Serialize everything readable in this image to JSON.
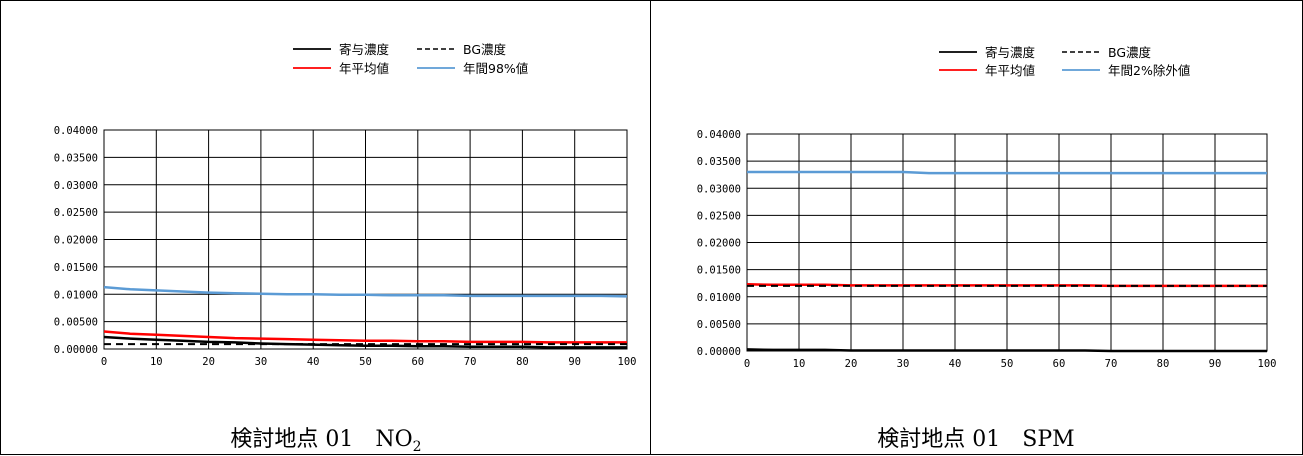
{
  "chart_data": [
    {
      "type": "line",
      "title": "",
      "caption": "検討地点 01　NO",
      "caption_subscript": "2",
      "xlabel": "",
      "ylabel": "",
      "xlim": [
        0,
        100
      ],
      "ylim": [
        0,
        0.04
      ],
      "x_ticks": [
        0,
        10,
        20,
        30,
        40,
        50,
        60,
        70,
        80,
        90,
        100
      ],
      "x_tick_labels": [
        "0",
        "10",
        "20",
        "30",
        "40",
        "50",
        "60",
        "70",
        "80",
        "90",
        "100"
      ],
      "y_ticks": [
        0,
        0.005,
        0.01,
        0.015,
        0.02,
        0.025,
        0.03,
        0.035,
        0.04
      ],
      "y_tick_labels": [
        "0.00000",
        "0.00500",
        "0.01000",
        "0.01500",
        "0.02000",
        "0.02500",
        "0.03000",
        "0.03500",
        "0.04000"
      ],
      "grid": true,
      "legend_position": "top-right",
      "x": [
        0,
        5,
        10,
        15,
        20,
        25,
        30,
        35,
        40,
        45,
        50,
        55,
        60,
        65,
        70,
        75,
        80,
        85,
        90,
        95,
        100
      ],
      "series": [
        {
          "name": "寄与濃度",
          "color": "#000000",
          "style": "solid",
          "values": [
            0.0022,
            0.0019,
            0.0017,
            0.0015,
            0.0013,
            0.0012,
            0.001,
            0.0009,
            0.0008,
            0.0007,
            0.0006,
            0.0006,
            0.0005,
            0.0005,
            0.0004,
            0.0004,
            0.0004,
            0.0003,
            0.0003,
            0.0003,
            0.0003
          ]
        },
        {
          "name": "BG濃度",
          "color": "#000000",
          "style": "dashed",
          "values": [
            0.0009,
            0.0009,
            0.0009,
            0.0009,
            0.0009,
            0.0009,
            0.0009,
            0.0009,
            0.0009,
            0.0009,
            0.0009,
            0.0009,
            0.0009,
            0.0009,
            0.0009,
            0.0009,
            0.0009,
            0.0009,
            0.0009,
            0.0009,
            0.0009
          ]
        },
        {
          "name": "年平均値",
          "color": "#ff0000",
          "style": "solid",
          "values": [
            0.0032,
            0.0028,
            0.0026,
            0.0024,
            0.0022,
            0.002,
            0.0019,
            0.0018,
            0.0017,
            0.0016,
            0.0015,
            0.0015,
            0.0014,
            0.0014,
            0.0013,
            0.0013,
            0.0013,
            0.0012,
            0.0012,
            0.0012,
            0.0012
          ]
        },
        {
          "name": "年間98%値",
          "color": "#5b9bd5",
          "style": "solid",
          "values": [
            0.0113,
            0.0109,
            0.0107,
            0.0105,
            0.0103,
            0.0102,
            0.0101,
            0.01,
            0.01,
            0.0099,
            0.0099,
            0.0098,
            0.0098,
            0.0098,
            0.0097,
            0.0097,
            0.0097,
            0.0097,
            0.0097,
            0.0097,
            0.0096
          ]
        }
      ]
    },
    {
      "type": "line",
      "title": "",
      "caption": "検討地点 01　SPM",
      "caption_subscript": "",
      "xlabel": "",
      "ylabel": "",
      "xlim": [
        0,
        100
      ],
      "ylim": [
        0,
        0.04
      ],
      "x_ticks": [
        0,
        10,
        20,
        30,
        40,
        50,
        60,
        70,
        80,
        90,
        100
      ],
      "x_tick_labels": [
        "0",
        "10",
        "20",
        "30",
        "40",
        "50",
        "60",
        "70",
        "80",
        "90",
        "100"
      ],
      "y_ticks": [
        0,
        0.005,
        0.01,
        0.015,
        0.02,
        0.025,
        0.03,
        0.035,
        0.04
      ],
      "y_tick_labels": [
        "0.00000",
        "0.00500",
        "0.01000",
        "0.01500",
        "0.02000",
        "0.02500",
        "0.03000",
        "0.03500",
        "0.04000"
      ],
      "grid": true,
      "legend_position": "top-right",
      "x": [
        0,
        5,
        10,
        15,
        20,
        25,
        30,
        35,
        40,
        45,
        50,
        55,
        60,
        65,
        70,
        75,
        80,
        85,
        90,
        95,
        100
      ],
      "series": [
        {
          "name": "寄与濃度",
          "color": "#000000",
          "style": "solid",
          "values": [
            0.0003,
            0.0002,
            0.0002,
            0.0002,
            0.0001,
            0.0001,
            0.0001,
            0.0001,
            0.0001,
            0.0001,
            0.0001,
            0.0001,
            0.0001,
            0.0001,
            0.0,
            0.0,
            0.0,
            0.0,
            0.0,
            0.0,
            0.0
          ]
        },
        {
          "name": "BG濃度",
          "color": "#000000",
          "style": "dashed",
          "values": [
            0.012,
            0.012,
            0.012,
            0.012,
            0.012,
            0.012,
            0.012,
            0.012,
            0.012,
            0.012,
            0.012,
            0.012,
            0.012,
            0.012,
            0.012,
            0.012,
            0.012,
            0.012,
            0.012,
            0.012,
            0.012
          ]
        },
        {
          "name": "年平均値",
          "color": "#ff0000",
          "style": "solid",
          "values": [
            0.0123,
            0.0122,
            0.0122,
            0.0122,
            0.0121,
            0.0121,
            0.0121,
            0.0121,
            0.0121,
            0.0121,
            0.0121,
            0.0121,
            0.0121,
            0.0121,
            0.012,
            0.012,
            0.012,
            0.012,
            0.012,
            0.012,
            0.012
          ]
        },
        {
          "name": "年間2%除外値",
          "color": "#5b9bd5",
          "style": "solid",
          "values": [
            0.033,
            0.033,
            0.033,
            0.033,
            0.033,
            0.033,
            0.033,
            0.0328,
            0.0328,
            0.0328,
            0.0328,
            0.0328,
            0.0328,
            0.0328,
            0.0328,
            0.0328,
            0.0328,
            0.0328,
            0.0328,
            0.0328,
            0.0328
          ]
        }
      ]
    }
  ]
}
